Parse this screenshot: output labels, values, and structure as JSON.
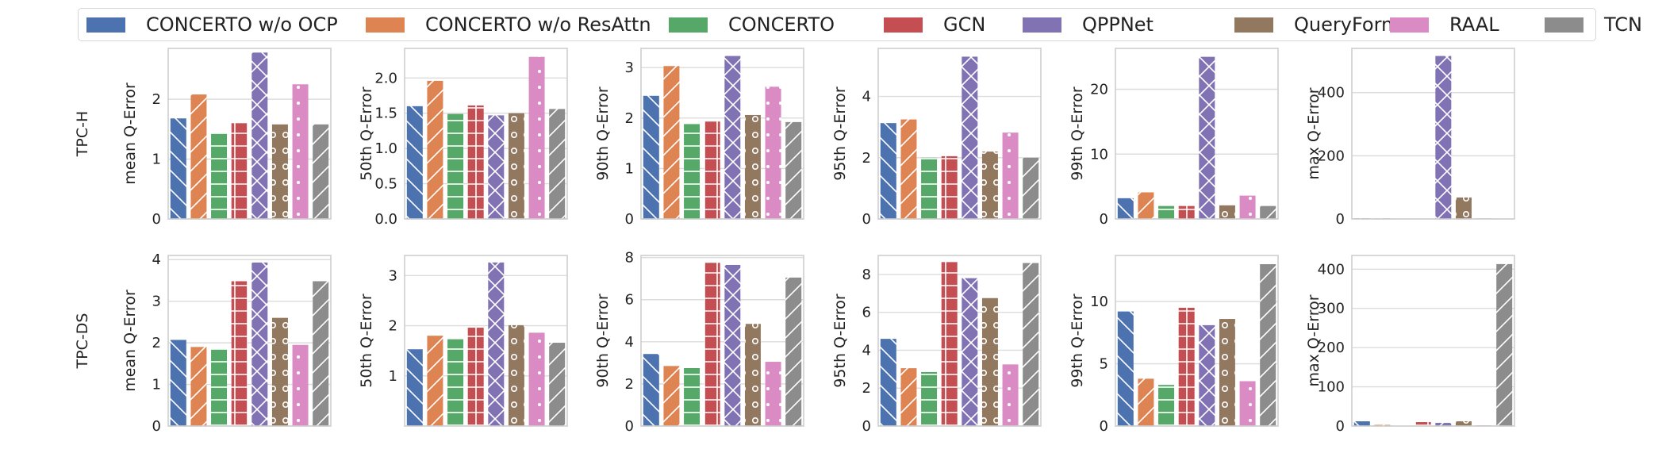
{
  "legend": [
    {
      "label": "CONCERTO w/o OCP",
      "color": "#4c72b0"
    },
    {
      "label": "CONCERTO w/o ResAttn",
      "color": "#dd8452"
    },
    {
      "label": "CONCERTO",
      "color": "#55a868"
    },
    {
      "label": "GCN",
      "color": "#c44e52"
    },
    {
      "label": "QPPNet",
      "color": "#8172b3"
    },
    {
      "label": "QueryFormer",
      "color": "#937860"
    },
    {
      "label": "RAAL",
      "color": "#da8bc3"
    },
    {
      "label": "TCN",
      "color": "#8c8c8c"
    }
  ],
  "chart_data": [
    {
      "type": "bar",
      "row": "TPC-H",
      "ylabel": "mean Q-Error",
      "ylim": [
        0,
        2.85
      ],
      "yticks": [
        "0",
        "1",
        "2"
      ],
      "ytick_values": [
        0,
        1,
        2
      ],
      "categories": [
        "CONCERTO w/o OCP",
        "CONCERTO w/o ResAttn",
        "CONCERTO",
        "GCN",
        "QPPNet",
        "QueryFormer",
        "RAAL",
        "TCN"
      ],
      "values": [
        1.68,
        2.08,
        1.44,
        1.6,
        2.78,
        1.58,
        2.25,
        1.58
      ]
    },
    {
      "type": "bar",
      "row": "TPC-H",
      "ylabel": "50th Q-Error",
      "ylim": [
        0,
        2.42
      ],
      "yticks": [
        "0.0",
        "0.5",
        "1.0",
        "1.5",
        "2.0"
      ],
      "ytick_values": [
        0,
        0.5,
        1,
        1.5,
        2
      ],
      "categories": [
        "CONCERTO w/o OCP",
        "CONCERTO w/o ResAttn",
        "CONCERTO",
        "GCN",
        "QPPNet",
        "QueryFormer",
        "RAAL",
        "TCN"
      ],
      "values": [
        1.6,
        1.96,
        1.49,
        1.61,
        1.47,
        1.5,
        2.3,
        1.56
      ]
    },
    {
      "type": "bar",
      "row": "TPC-H",
      "ylabel": "90th Q-Error",
      "ylim": [
        0,
        3.38
      ],
      "yticks": [
        "0",
        "1",
        "2",
        "3"
      ],
      "ytick_values": [
        0,
        1,
        2,
        3
      ],
      "categories": [
        "CONCERTO w/o OCP",
        "CONCERTO w/o ResAttn",
        "CONCERTO",
        "GCN",
        "QPPNet",
        "QueryFormer",
        "RAAL",
        "TCN"
      ],
      "values": [
        2.44,
        3.03,
        1.88,
        1.93,
        3.23,
        2.06,
        2.62,
        1.92
      ]
    },
    {
      "type": "bar",
      "row": "TPC-H",
      "ylabel": "95th Q-Error",
      "ylim": [
        0,
        5.57
      ],
      "yticks": [
        "0",
        "2",
        "4"
      ],
      "ytick_values": [
        0,
        2,
        4
      ],
      "categories": [
        "CONCERTO w/o OCP",
        "CONCERTO w/o ResAttn",
        "CONCERTO",
        "GCN",
        "QPPNet",
        "QueryFormer",
        "RAAL",
        "TCN"
      ],
      "values": [
        3.13,
        3.25,
        2.0,
        2.05,
        5.3,
        2.2,
        2.82,
        2.0
      ]
    },
    {
      "type": "bar",
      "row": "TPC-H",
      "ylabel": "99th Q-Error",
      "ylim": [
        0,
        26.3
      ],
      "yticks": [
        "0",
        "10",
        "20"
      ],
      "ytick_values": [
        0,
        10,
        20
      ],
      "categories": [
        "CONCERTO w/o OCP",
        "CONCERTO w/o ResAttn",
        "CONCERTO",
        "GCN",
        "QPPNet",
        "QueryFormer",
        "RAAL",
        "TCN"
      ],
      "values": [
        3.2,
        4.1,
        2.0,
        2.0,
        25.0,
        2.1,
        3.6,
        2.0
      ]
    },
    {
      "type": "bar",
      "row": "TPC-H",
      "ylabel": "max Q-Error",
      "ylim": [
        0,
        540
      ],
      "yticks": [
        "0",
        "200",
        "400"
      ],
      "ytick_values": [
        0,
        200,
        400
      ],
      "categories": [
        "CONCERTO w/o OCP",
        "CONCERTO w/o ResAttn",
        "CONCERTO",
        "GCN",
        "QPPNet",
        "QueryFormer",
        "RAAL",
        "TCN"
      ],
      "values": [
        2,
        2,
        1,
        1,
        516,
        68,
        2,
        1
      ]
    },
    {
      "type": "bar",
      "row": "TPC-DS",
      "ylabel": "mean Q-Error",
      "ylim": [
        0,
        4.1
      ],
      "yticks": [
        "0",
        "1",
        "2",
        "3",
        "4"
      ],
      "ytick_values": [
        0,
        1,
        2,
        3,
        4
      ],
      "categories": [
        "CONCERTO w/o OCP",
        "CONCERTO w/o ResAttn",
        "CONCERTO",
        "GCN",
        "QPPNet",
        "QueryFormer",
        "RAAL",
        "TCN"
      ],
      "values": [
        2.07,
        1.9,
        1.84,
        3.48,
        3.93,
        2.6,
        1.95,
        3.48
      ]
    },
    {
      "type": "bar",
      "row": "TPC-DS",
      "ylabel": "50th Q-Error",
      "ylim": [
        0,
        3.4
      ],
      "yticks": [
        "1",
        "2",
        "3"
      ],
      "ytick_values": [
        1,
        2,
        3
      ],
      "categories": [
        "CONCERTO w/o OCP",
        "CONCERTO w/o ResAttn",
        "CONCERTO",
        "GCN",
        "QPPNet",
        "QueryFormer",
        "RAAL",
        "TCN"
      ],
      "values": [
        1.53,
        1.8,
        1.73,
        1.96,
        3.26,
        2.01,
        1.86,
        1.66
      ]
    },
    {
      "type": "bar",
      "row": "TPC-DS",
      "ylabel": "90th Q-Error",
      "ylim": [
        0,
        8.1
      ],
      "yticks": [
        "0",
        "2",
        "4",
        "6",
        "8"
      ],
      "ytick_values": [
        0,
        2,
        4,
        6,
        8
      ],
      "categories": [
        "CONCERTO w/o OCP",
        "CONCERTO w/o ResAttn",
        "CONCERTO",
        "GCN",
        "QPPNet",
        "QueryFormer",
        "RAAL",
        "TCN"
      ],
      "values": [
        3.42,
        2.85,
        2.75,
        7.75,
        7.65,
        4.85,
        3.05,
        7.05
      ]
    },
    {
      "type": "bar",
      "row": "TPC-DS",
      "ylabel": "95th Q-Error",
      "ylim": [
        0,
        9.0
      ],
      "yticks": [
        "0",
        "2",
        "4",
        "6",
        "8"
      ],
      "ytick_values": [
        0,
        2,
        4,
        6,
        8
      ],
      "categories": [
        "CONCERTO w/o OCP",
        "CONCERTO w/o ResAttn",
        "CONCERTO",
        "GCN",
        "QPPNet",
        "QueryFormer",
        "RAAL",
        "TCN"
      ],
      "values": [
        4.6,
        3.05,
        2.85,
        8.65,
        7.8,
        6.75,
        3.25,
        8.6
      ]
    },
    {
      "type": "bar",
      "row": "TPC-DS",
      "ylabel": "99th Q-Error",
      "ylim": [
        0,
        13.7
      ],
      "yticks": [
        "0",
        "5",
        "10"
      ],
      "ytick_values": [
        0,
        5,
        10
      ],
      "categories": [
        "CONCERTO w/o OCP",
        "CONCERTO w/o ResAttn",
        "CONCERTO",
        "GCN",
        "QPPNet",
        "QueryFormer",
        "RAAL",
        "TCN"
      ],
      "values": [
        9.2,
        3.8,
        3.3,
        9.5,
        8.1,
        8.6,
        3.6,
        13.0
      ]
    },
    {
      "type": "bar",
      "row": "TPC-DS",
      "ylabel": "max Q-Error",
      "ylim": [
        0,
        435
      ],
      "yticks": [
        "0",
        "100",
        "200",
        "300",
        "400"
      ],
      "ytick_values": [
        0,
        100,
        200,
        300,
        400
      ],
      "categories": [
        "CONCERTO w/o OCP",
        "CONCERTO w/o ResAttn",
        "CONCERTO",
        "GCN",
        "QPPNet",
        "QueryFormer",
        "RAAL",
        "TCN"
      ],
      "values": [
        12,
        3,
        2,
        10,
        8,
        12,
        2,
        413
      ]
    }
  ]
}
